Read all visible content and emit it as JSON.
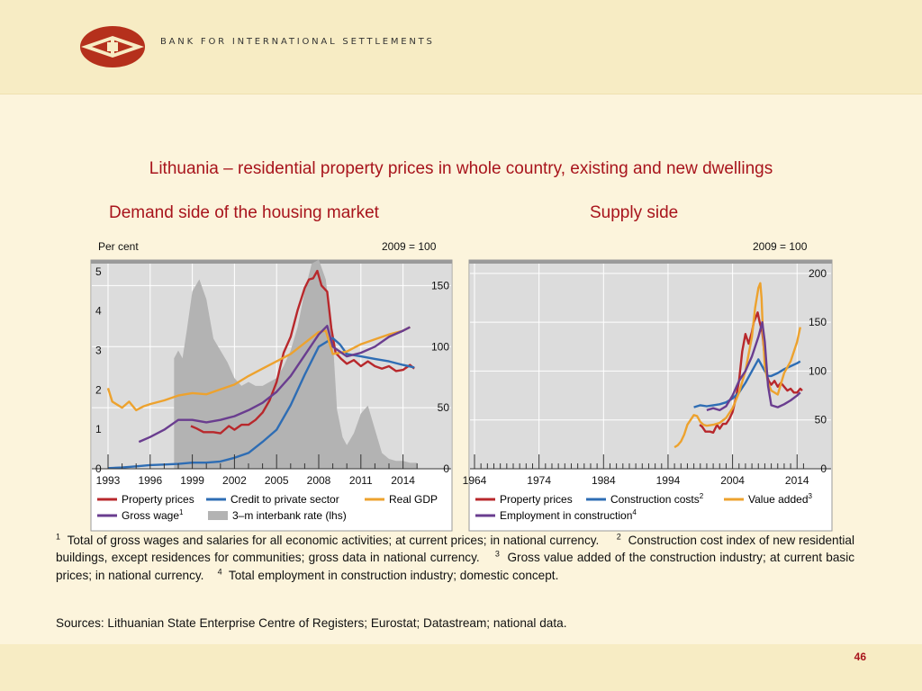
{
  "header": {
    "org_name": "BANK FOR INTERNATIONAL SETTLEMENTS"
  },
  "title": "Lithuania – residential property prices in whole country, existing and new dwellings",
  "panels": {
    "left": {
      "title": "Demand side of the housing market",
      "unit_left": "Per cent",
      "unit_right": "2009 = 100"
    },
    "right": {
      "title": "Supply side",
      "unit_right": "2009 = 100"
    }
  },
  "footnotes": [
    {
      "n": "1",
      "text": "Total of gross wages and salaries for all economic activities; at current prices; in national currency."
    },
    {
      "n": "2",
      "text": "Construction cost index of new residential buildings, except residences for communities; gross data in national currency."
    },
    {
      "n": "3",
      "text": "Gross value added of the construction industry; at current basic prices; in national currency."
    },
    {
      "n": "4",
      "text": "Total employment in construction industry; domestic concept."
    }
  ],
  "sources": "Sources: Lithuanian State Enterprise Centre of Registers; Eurostat; Datastream; national data.",
  "page_number": "46",
  "colors": {
    "accent": "#a8141c",
    "property": "#b8282c",
    "credit": "#2e6db4",
    "gdp": "#eda22e",
    "wage": "#6a3d8f",
    "interbank": "#b3b3b3",
    "plot_bg": "#dcdcdc"
  },
  "chart_data": [
    {
      "type": "line",
      "title": "Demand side of the housing market",
      "x_range": [
        1993,
        2015.5
      ],
      "x_ticks": [
        1993,
        1996,
        1999,
        2002,
        2005,
        2008,
        2011,
        2014
      ],
      "y_left": {
        "unit": "Per cent",
        "range": [
          0,
          5.2
        ],
        "ticks": [
          0,
          1,
          2,
          3,
          4,
          5
        ]
      },
      "y_right": {
        "unit": "2009 = 100",
        "range": [
          0,
          168
        ],
        "ticks": [
          0,
          50,
          100,
          150
        ]
      },
      "series": [
        {
          "name": "Property prices",
          "axis": "right",
          "color": "#b8282c",
          "x": [
            1998.9,
            1999.3,
            1999.8,
            2000.5,
            2001.0,
            2001.6,
            2002.0,
            2002.5,
            2003.0,
            2003.5,
            2004.0,
            2004.5,
            2005.0,
            2005.5,
            2006.0,
            2006.5,
            2007.0,
            2007.3,
            2007.6,
            2007.9,
            2008.2,
            2008.6,
            2008.9,
            2009.2,
            2009.6,
            2010.0,
            2010.5,
            2011.0,
            2011.5,
            2012.0,
            2012.5,
            2013.0,
            2013.5,
            2014.0,
            2014.5,
            2014.8
          ],
          "y": [
            35,
            33,
            30,
            30,
            29,
            35,
            32,
            36,
            36,
            40,
            46,
            56,
            71,
            95,
            108,
            130,
            148,
            155,
            156,
            162,
            150,
            145,
            115,
            95,
            90,
            86,
            89,
            84,
            88,
            84,
            82,
            84,
            80,
            81,
            85,
            82
          ]
        },
        {
          "name": "Credit to private sector",
          "axis": "right",
          "color": "#2e6db4",
          "x": [
            1993,
            1994,
            1995,
            1996,
            1997,
            1998,
            1999,
            2000,
            2001,
            2002,
            2003,
            2004,
            2005,
            2006,
            2007,
            2008,
            2009,
            2009.5,
            2010,
            2011,
            2012,
            2013,
            2014,
            2014.8
          ],
          "y": [
            0.5,
            1,
            2,
            3,
            3.5,
            4,
            5,
            5,
            6,
            9,
            13,
            22,
            32,
            52,
            77,
            100,
            107,
            102,
            94,
            92,
            90,
            88,
            85,
            83
          ]
        },
        {
          "name": "Real GDP",
          "axis": "right",
          "color": "#eda22e",
          "x": [
            1993,
            1993.3,
            1994,
            1994.5,
            1995,
            1995.5,
            1996,
            1997,
            1998,
            1999,
            2000,
            2001,
            2002,
            2003,
            2004,
            2005,
            2006,
            2007,
            2008,
            2008.5,
            2009,
            2010,
            2011,
            2012,
            2013,
            2014,
            2014.5
          ],
          "y": [
            66,
            55,
            50,
            55,
            48,
            51,
            53,
            56,
            60,
            62,
            61,
            65,
            69,
            76,
            82,
            88,
            94,
            103,
            112,
            113,
            94,
            96,
            102,
            106,
            110,
            113,
            116
          ]
        },
        {
          "name": "Gross wage",
          "axis": "right",
          "color": "#6a3d8f",
          "footnote": "1",
          "x": [
            1995.2,
            1996,
            1997,
            1998,
            1999,
            2000,
            2001,
            2002,
            2003,
            2004,
            2005,
            2006,
            2007,
            2008,
            2008.6,
            2009,
            2010,
            2011,
            2012,
            2013,
            2014,
            2014.5
          ],
          "y": [
            22,
            26,
            32,
            40,
            40,
            38,
            40,
            43,
            48,
            54,
            63,
            76,
            93,
            110,
            117,
            100,
            92,
            95,
            100,
            108,
            113,
            116
          ]
        },
        {
          "name": "3–m interbank rate (lhs)",
          "kind": "area",
          "axis": "left",
          "color": "#b3b3b3",
          "x": [
            1997.7,
            1998,
            1998.3,
            1998.6,
            1999,
            1999.5,
            2000,
            2000.5,
            2001,
            2001.5,
            2002,
            2002.5,
            2003,
            2003.5,
            2004,
            2004.5,
            2005,
            2005.5,
            2006,
            2006.5,
            2007,
            2007.5,
            2008,
            2008.5,
            2009,
            2009.3,
            2009.7,
            2010,
            2010.5,
            2011,
            2011.5,
            2012,
            2012.5,
            2013,
            2013.5,
            2014,
            2014.5,
            2015
          ],
          "y": [
            2.8,
            3.0,
            2.8,
            3.5,
            4.5,
            4.8,
            4.3,
            3.3,
            3.0,
            2.7,
            2.3,
            2.1,
            2.2,
            2.1,
            2.1,
            2.2,
            2.3,
            2.6,
            3.0,
            3.6,
            4.5,
            5.2,
            5.3,
            4.8,
            3.3,
            1.5,
            0.8,
            0.6,
            0.9,
            1.4,
            1.6,
            1.0,
            0.4,
            0.25,
            0.2,
            0.2,
            0.15,
            0.15
          ]
        }
      ]
    },
    {
      "type": "line",
      "title": "Supply side",
      "x_range": [
        1964,
        2015.5
      ],
      "x_ticks": [
        1964,
        1974,
        1984,
        1994,
        2004,
        2014
      ],
      "y_right": {
        "unit": "2009 = 100",
        "range": [
          0,
          210
        ],
        "ticks": [
          0,
          50,
          100,
          150,
          200
        ]
      },
      "series": [
        {
          "name": "Property prices",
          "color": "#b8282c",
          "x": [
            1998.9,
            1999.3,
            1999.8,
            2000.5,
            2001,
            2001.6,
            2002,
            2002.5,
            2003,
            2003.5,
            2004,
            2004.5,
            2005,
            2005.5,
            2006,
            2006.5,
            2007,
            2007.3,
            2007.6,
            2007.9,
            2008.2,
            2008.6,
            2008.9,
            2009.2,
            2009.6,
            2010,
            2010.5,
            2011,
            2011.5,
            2012,
            2012.5,
            2013,
            2013.5,
            2014,
            2014.5,
            2014.8
          ],
          "y": [
            45,
            43,
            38,
            38,
            37,
            45,
            41,
            46,
            46,
            51,
            58,
            72,
            90,
            120,
            138,
            128,
            140,
            150,
            155,
            160,
            150,
            140,
            120,
            98,
            90,
            86,
            90,
            84,
            88,
            84,
            80,
            82,
            78,
            78,
            82,
            80
          ]
        },
        {
          "name": "Construction costs",
          "footnote": "2",
          "color": "#2e6db4",
          "x": [
            1998,
            1999,
            2000,
            2001,
            2002,
            2003,
            2004,
            2005,
            2006,
            2007,
            2008,
            2009,
            2009.5,
            2010,
            2011,
            2012,
            2013,
            2014,
            2014.5
          ],
          "y": [
            63,
            65,
            64,
            65,
            66,
            68,
            72,
            78,
            88,
            100,
            112,
            100,
            95,
            95,
            98,
            102,
            105,
            108,
            110
          ]
        },
        {
          "name": "Value added",
          "footnote": "3",
          "color": "#eda22e",
          "x": [
            1995,
            1995.5,
            1996,
            1996.5,
            1997,
            1997.5,
            1998,
            1998.5,
            1999,
            1999.5,
            2000,
            2001,
            2002,
            2003,
            2004,
            2005,
            2006,
            2007,
            2007.5,
            2008,
            2008.3,
            2008.5,
            2008.7,
            2009,
            2009.5,
            2010,
            2011,
            2012,
            2013,
            2014,
            2014.5
          ],
          "y": [
            22,
            24,
            28,
            35,
            45,
            50,
            55,
            54,
            48,
            45,
            44,
            45,
            47,
            52,
            62,
            78,
            100,
            135,
            165,
            185,
            190,
            175,
            140,
            105,
            88,
            80,
            76,
            98,
            110,
            130,
            145
          ]
        },
        {
          "name": "Employment in construction",
          "footnote": "4",
          "color": "#6a3d8f",
          "x": [
            2000,
            2001,
            2002,
            2003,
            2004,
            2005,
            2006,
            2007,
            2008,
            2008.6,
            2009,
            2009.5,
            2010,
            2011,
            2012,
            2013,
            2014,
            2014.5
          ],
          "y": [
            60,
            62,
            60,
            64,
            75,
            90,
            100,
            115,
            135,
            150,
            130,
            85,
            65,
            63,
            66,
            70,
            75,
            78
          ]
        }
      ]
    }
  ]
}
